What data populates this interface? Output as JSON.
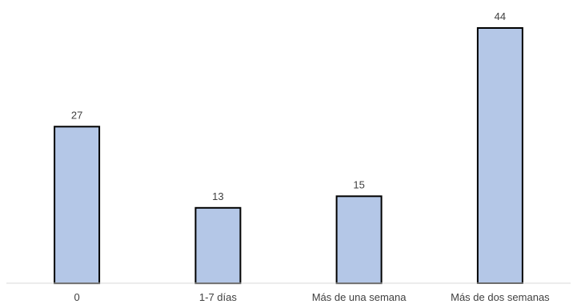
{
  "chart_data": {
    "type": "bar",
    "categories": [
      "0",
      "1-7 días",
      "Más de una semana",
      "Más de dos semanas"
    ],
    "values": [
      27,
      13,
      15,
      44
    ],
    "title": "",
    "xlabel": "",
    "ylabel": "",
    "ylim": [
      0,
      48
    ],
    "grid": false,
    "legend": "none",
    "data_labels": true,
    "colors": {
      "bar_fill": "#b4c7e7",
      "bar_stroke": "#000000",
      "text": "#404040",
      "axis": "#d9d9d9"
    }
  }
}
